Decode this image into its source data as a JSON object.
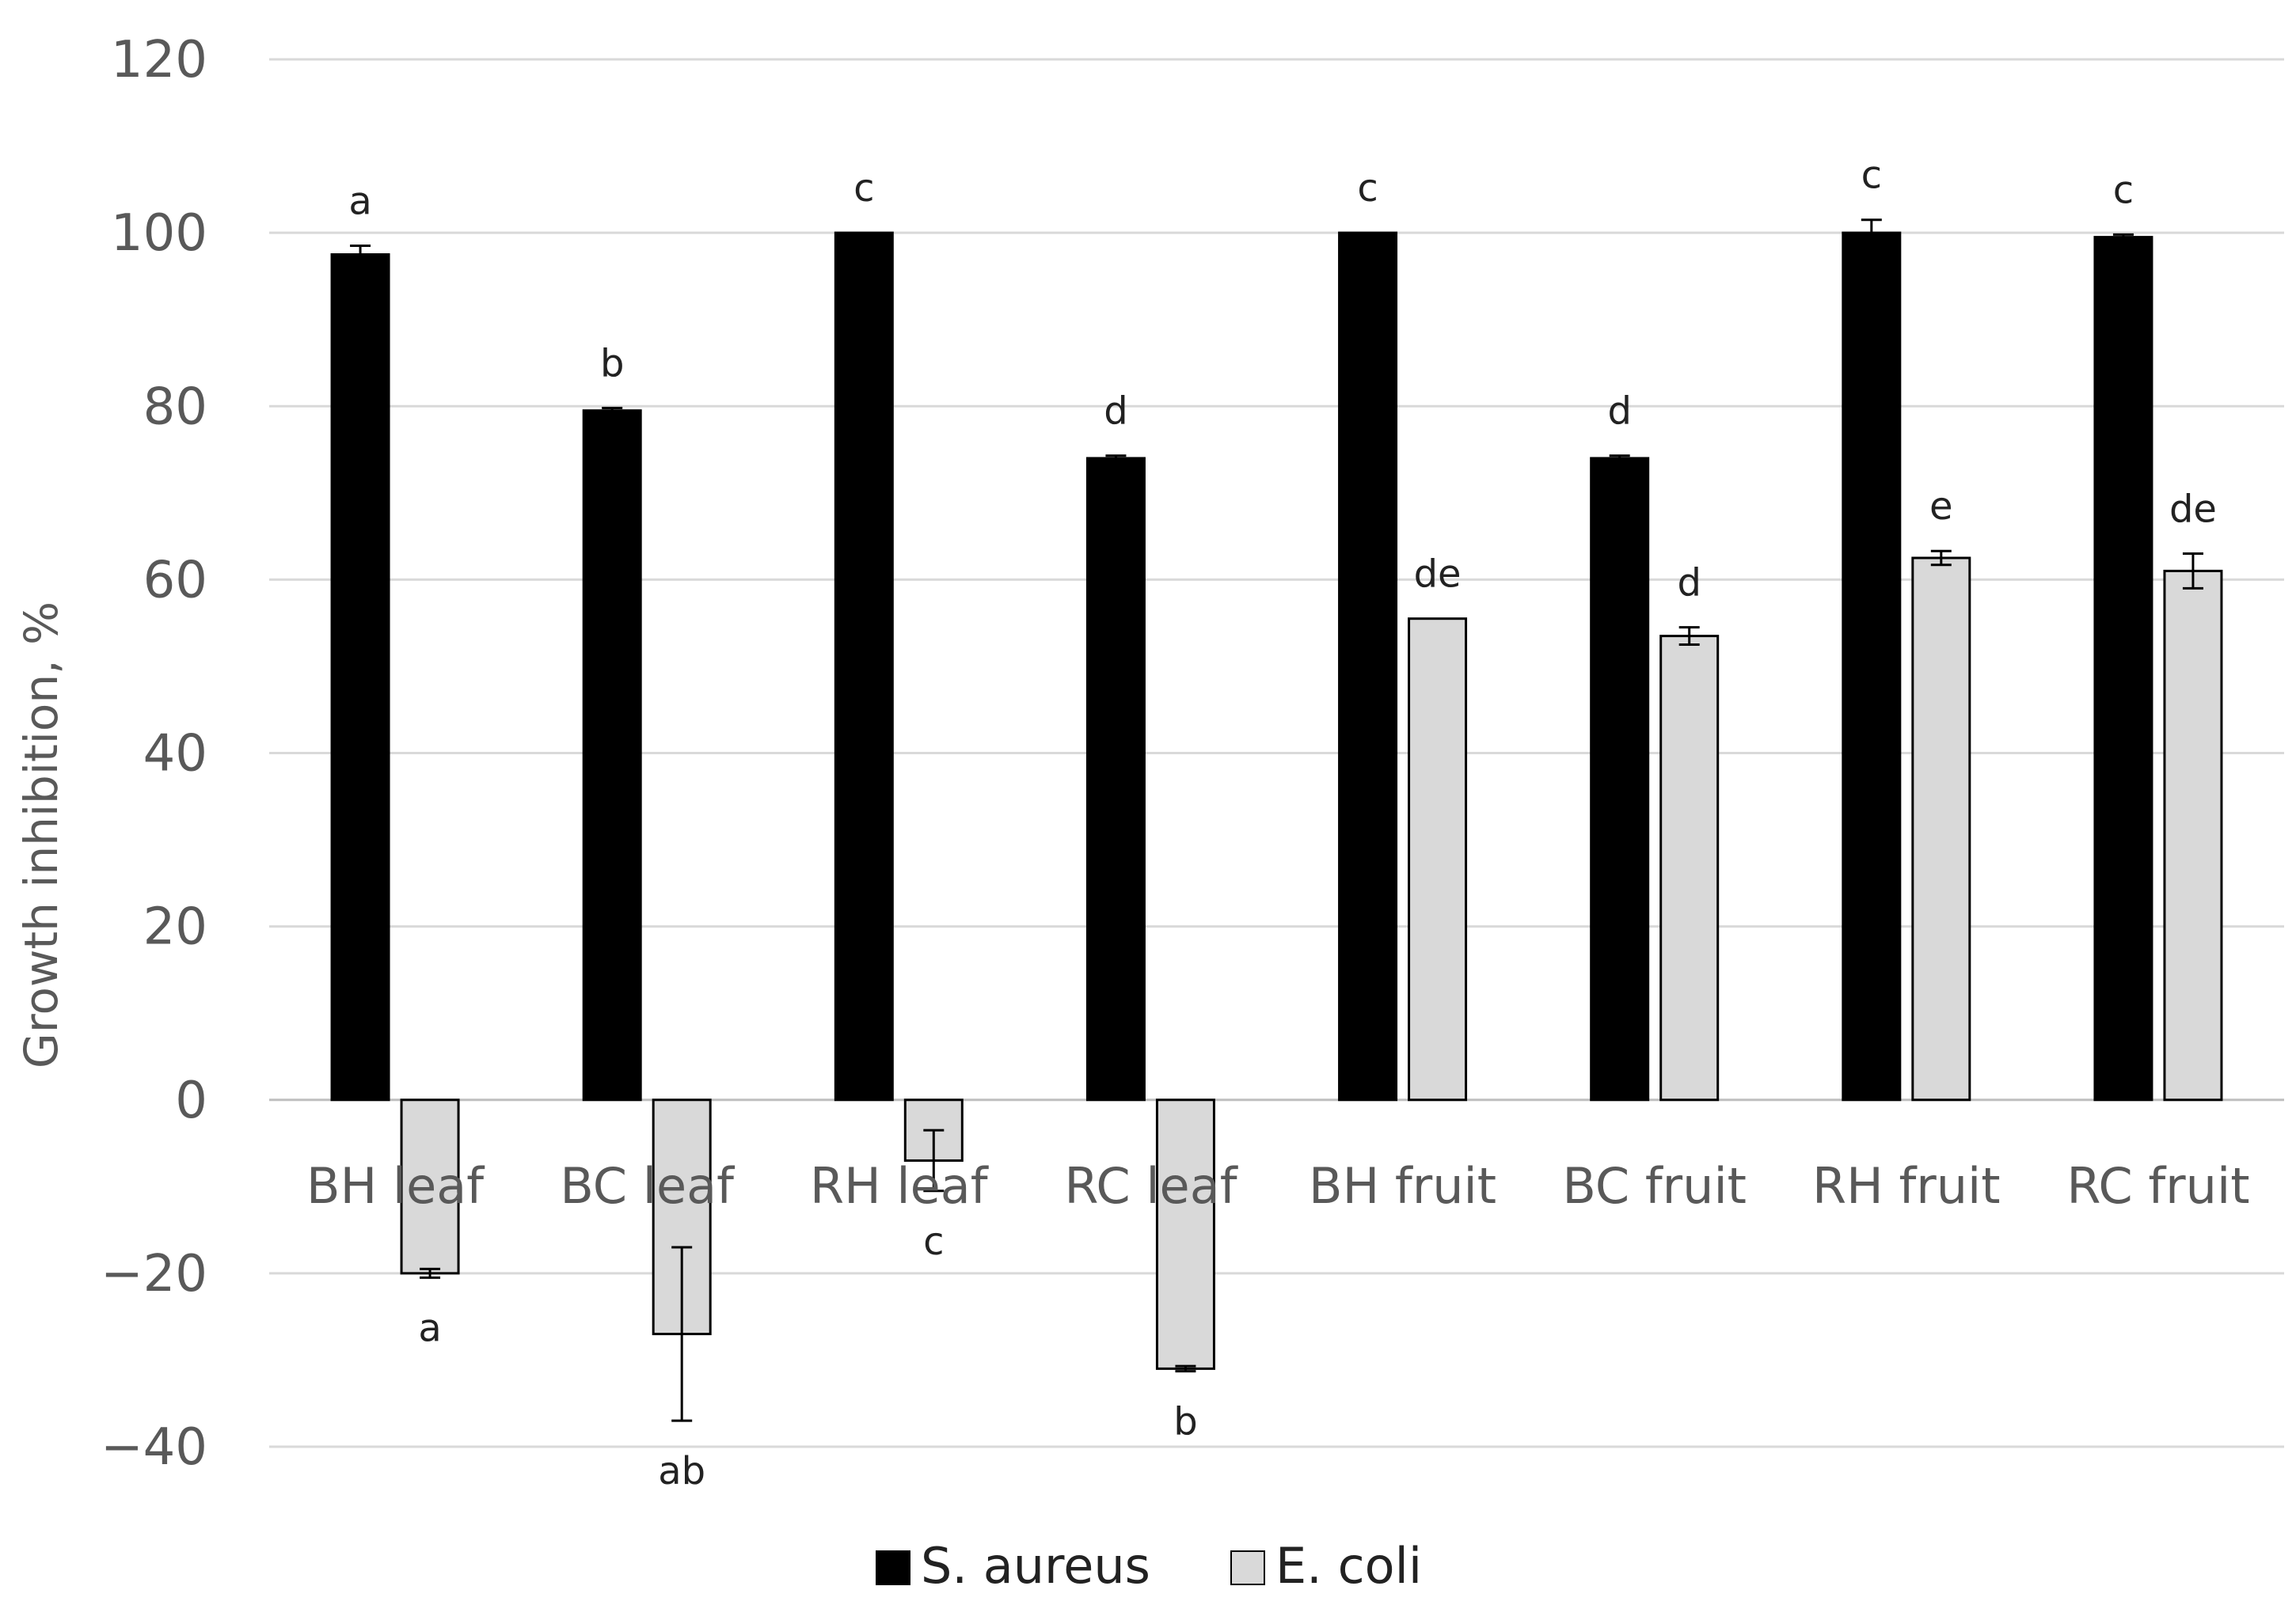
{
  "chart_data": {
    "type": "bar",
    "title": "",
    "xlabel": "",
    "ylabel": "Growth inhibition, %",
    "ylim": [
      -40,
      120
    ],
    "yticks": [
      -40,
      -20,
      0,
      20,
      40,
      60,
      80,
      100,
      120
    ],
    "grid": true,
    "legend_position": "bottom",
    "categories": [
      "BH leaf",
      "BC leaf",
      "RH leaf",
      "RC leaf",
      "BH fruit",
      "BC fruit",
      "RH fruit",
      "RC fruit"
    ],
    "series": [
      {
        "name": "S. aureus",
        "color": "#000000",
        "values": [
          97.5,
          79.5,
          100,
          74,
          100,
          74,
          100,
          99.5
        ],
        "errors": [
          1,
          0.3,
          0,
          0.3,
          0,
          0.3,
          1.5,
          0.3
        ],
        "letters": [
          "a",
          "b",
          "c",
          "d",
          "c",
          "d",
          "c",
          "c"
        ]
      },
      {
        "name": "E. coli",
        "color": "#d9d9d9",
        "values": [
          -20,
          -27,
          -7,
          -31,
          55.5,
          53.5,
          62.5,
          61
        ],
        "errors": [
          0.5,
          10,
          3.5,
          0.3,
          0,
          1,
          0.8,
          2
        ],
        "letters": [
          "a",
          "ab",
          "c",
          "b",
          "de",
          "d",
          "e",
          "de"
        ]
      }
    ]
  }
}
